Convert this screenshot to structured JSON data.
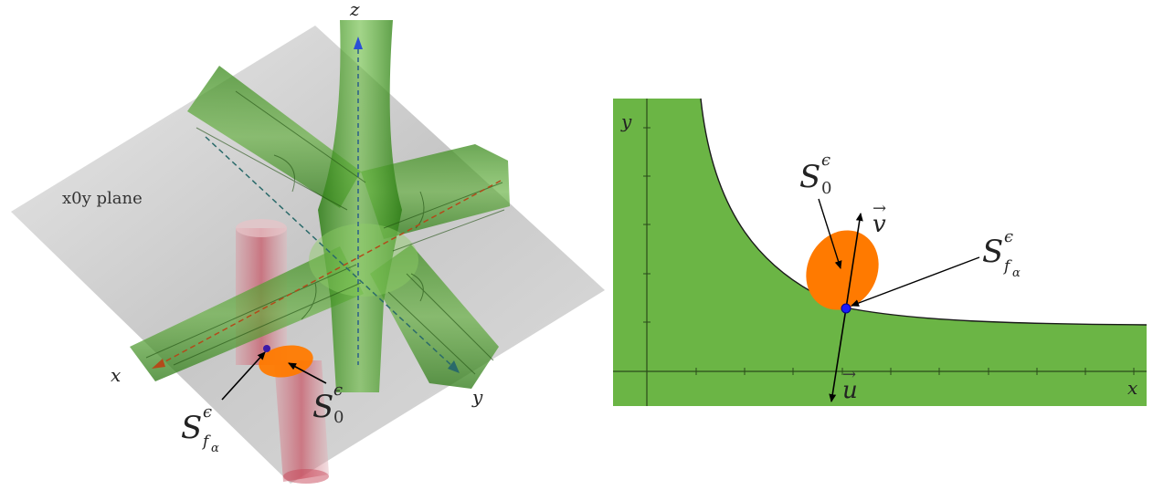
{
  "left_figure": {
    "axis_x": "x",
    "axis_y": "y",
    "axis_z": "z",
    "plane_label": "x0y plane",
    "set_label_main": "S",
    "set_label_sup": "ϵ",
    "set_label_sub": "0",
    "curve_label_main": "S",
    "curve_label_sup": "ϵ",
    "curve_label_sub": "f",
    "curve_label_subsub": "α"
  },
  "right_figure": {
    "axis_x": "x",
    "axis_y": "y",
    "set_label_main": "S",
    "set_label_sup": "ϵ",
    "set_label_sub": "0",
    "curve_label_main": "S",
    "curve_label_sup": "ϵ",
    "curve_label_sub": "f",
    "curve_label_subsub": "α",
    "vector_v": "v",
    "vector_u": "u",
    "arrow_mark": "→"
  },
  "colors": {
    "green_fill": "#6bb545",
    "green_surface": "#4c9a2a",
    "orange": "#ff7a00",
    "blue_point": "#1a1aff",
    "plane_gray": "#b9b9b9",
    "cylinder_red": "#c8485a"
  }
}
